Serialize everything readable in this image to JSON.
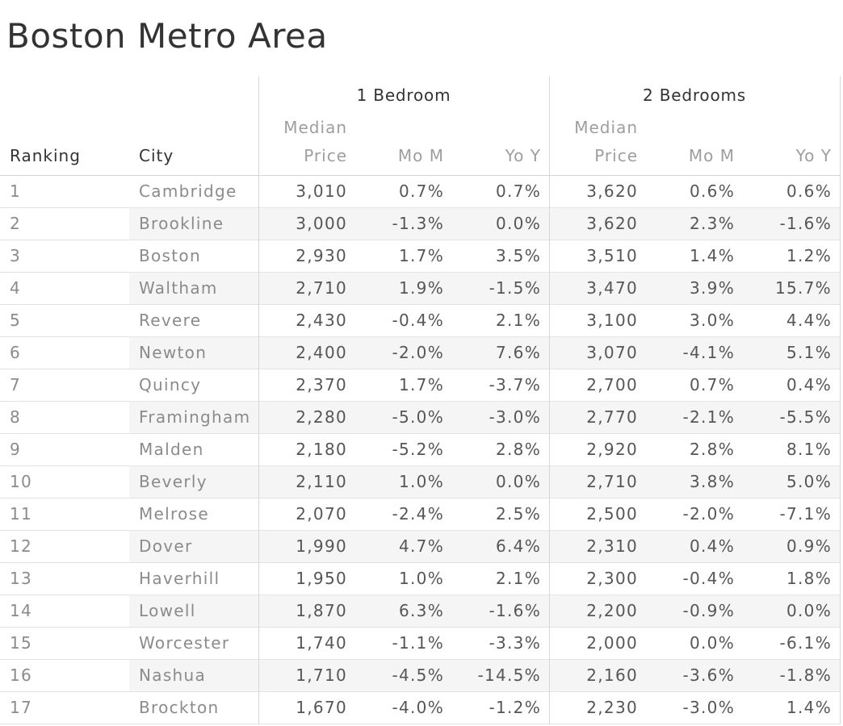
{
  "chart_data": {
    "type": "table",
    "title": "Boston Metro Area",
    "group_headers": [
      {
        "label": "1 Bedroom"
      },
      {
        "label": "2 Bedrooms"
      }
    ],
    "column_headers": [
      "Ranking",
      "City",
      "Median Price",
      "Mo M",
      "Yo Y",
      "Median Price",
      "Mo M",
      "Yo Y"
    ],
    "rows": [
      [
        "1",
        "Cambridge",
        "3,010",
        "0.7%",
        "0.7%",
        "3,620",
        "0.6%",
        "0.6%"
      ],
      [
        "2",
        "Brookline",
        "3,000",
        "-1.3%",
        "0.0%",
        "3,620",
        "2.3%",
        "-1.6%"
      ],
      [
        "3",
        "Boston",
        "2,930",
        "1.7%",
        "3.5%",
        "3,510",
        "1.4%",
        "1.2%"
      ],
      [
        "4",
        "Waltham",
        "2,710",
        "1.9%",
        "-1.5%",
        "3,470",
        "3.9%",
        "15.7%"
      ],
      [
        "5",
        "Revere",
        "2,430",
        "-0.4%",
        "2.1%",
        "3,100",
        "3.0%",
        "4.4%"
      ],
      [
        "6",
        "Newton",
        "2,400",
        "-2.0%",
        "7.6%",
        "3,070",
        "-4.1%",
        "5.1%"
      ],
      [
        "7",
        "Quincy",
        "2,370",
        "1.7%",
        "-3.7%",
        "2,700",
        "0.7%",
        "0.4%"
      ],
      [
        "8",
        "Framingham",
        "2,280",
        "-5.0%",
        "-3.0%",
        "2,770",
        "-2.1%",
        "-5.5%"
      ],
      [
        "9",
        "Malden",
        "2,180",
        "-5.2%",
        "2.8%",
        "2,920",
        "2.8%",
        "8.1%"
      ],
      [
        "10",
        "Beverly",
        "2,110",
        "1.0%",
        "0.0%",
        "2,710",
        "3.8%",
        "5.0%"
      ],
      [
        "11",
        "Melrose",
        "2,070",
        "-2.4%",
        "2.5%",
        "2,500",
        "-2.0%",
        "-7.1%"
      ],
      [
        "12",
        "Dover",
        "1,990",
        "4.7%",
        "6.4%",
        "2,310",
        "0.4%",
        "0.9%"
      ],
      [
        "13",
        "Haverhill",
        "1,950",
        "1.0%",
        "2.1%",
        "2,300",
        "-0.4%",
        "1.8%"
      ],
      [
        "14",
        "Lowell",
        "1,870",
        "6.3%",
        "-1.6%",
        "2,200",
        "-0.9%",
        "0.0%"
      ],
      [
        "15",
        "Worcester",
        "1,740",
        "-1.1%",
        "-3.3%",
        "2,000",
        "0.0%",
        "-6.1%"
      ],
      [
        "16",
        "Nashua",
        "1,710",
        "-4.5%",
        "-14.5%",
        "2,160",
        "-3.6%",
        "-1.8%"
      ],
      [
        "17",
        "Brockton",
        "1,670",
        "-4.0%",
        "-1.2%",
        "2,230",
        "-3.0%",
        "1.4%"
      ]
    ],
    "layout": {
      "row_banding": true,
      "banding_color": "#f5f5f5",
      "row_border_color": "#e3e3e3",
      "section_border_color": "#d6d6d6",
      "title_color": "#333333",
      "header_color": "#333333",
      "muted_header_color": "#9e9e9e",
      "label_text_color": "#8b8b8b",
      "value_text_color": "#565656"
    }
  }
}
